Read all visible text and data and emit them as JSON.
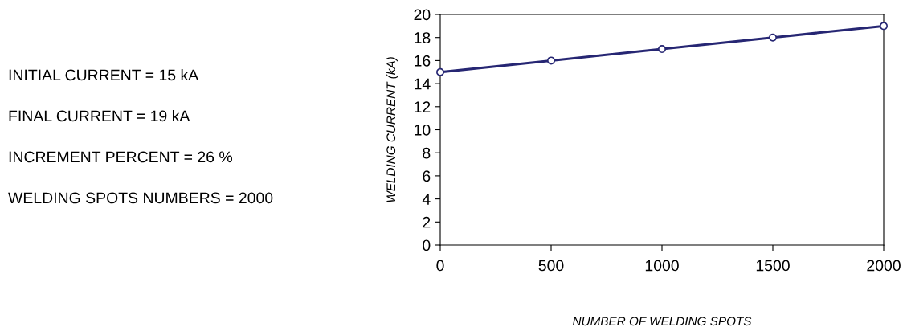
{
  "chart_data": {
    "type": "line",
    "xlabel": "NUMBER OF WELDING SPOTS",
    "ylabel": "WELDING CURRENT (kA)",
    "x": [
      0,
      500,
      1000,
      1500,
      2000
    ],
    "series": [
      {
        "color": "#262673",
        "values": [
          15,
          16,
          17,
          18,
          19
        ]
      }
    ],
    "xlim": [
      0,
      2000
    ],
    "xticks": [
      0,
      500,
      1000,
      1500,
      2000
    ],
    "ylim": [
      0,
      20
    ],
    "yticks": [
      0,
      2,
      4,
      6,
      8,
      10,
      12,
      14,
      16,
      18,
      20
    ],
    "marker": "circle",
    "line_style": "solid",
    "grid": false,
    "annotations": [
      "INITIAL CURRENT = 15 kA",
      "FINAL CURRENT = 19 kA",
      "INCREMENT PERCENT = 26 %",
      "WELDING SPOTS NUMBERS = 2000"
    ]
  }
}
